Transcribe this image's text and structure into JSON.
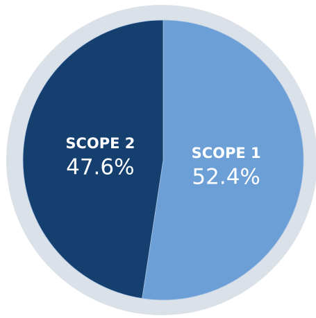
{
  "chart_data": {
    "type": "pie",
    "categories": [
      "SCOPE 1",
      "SCOPE 2"
    ],
    "values": [
      52.4,
      47.6
    ],
    "value_labels": [
      "52.4%",
      "47.6%"
    ],
    "colors": [
      "#6b9fd6",
      "#143f6e"
    ]
  }
}
